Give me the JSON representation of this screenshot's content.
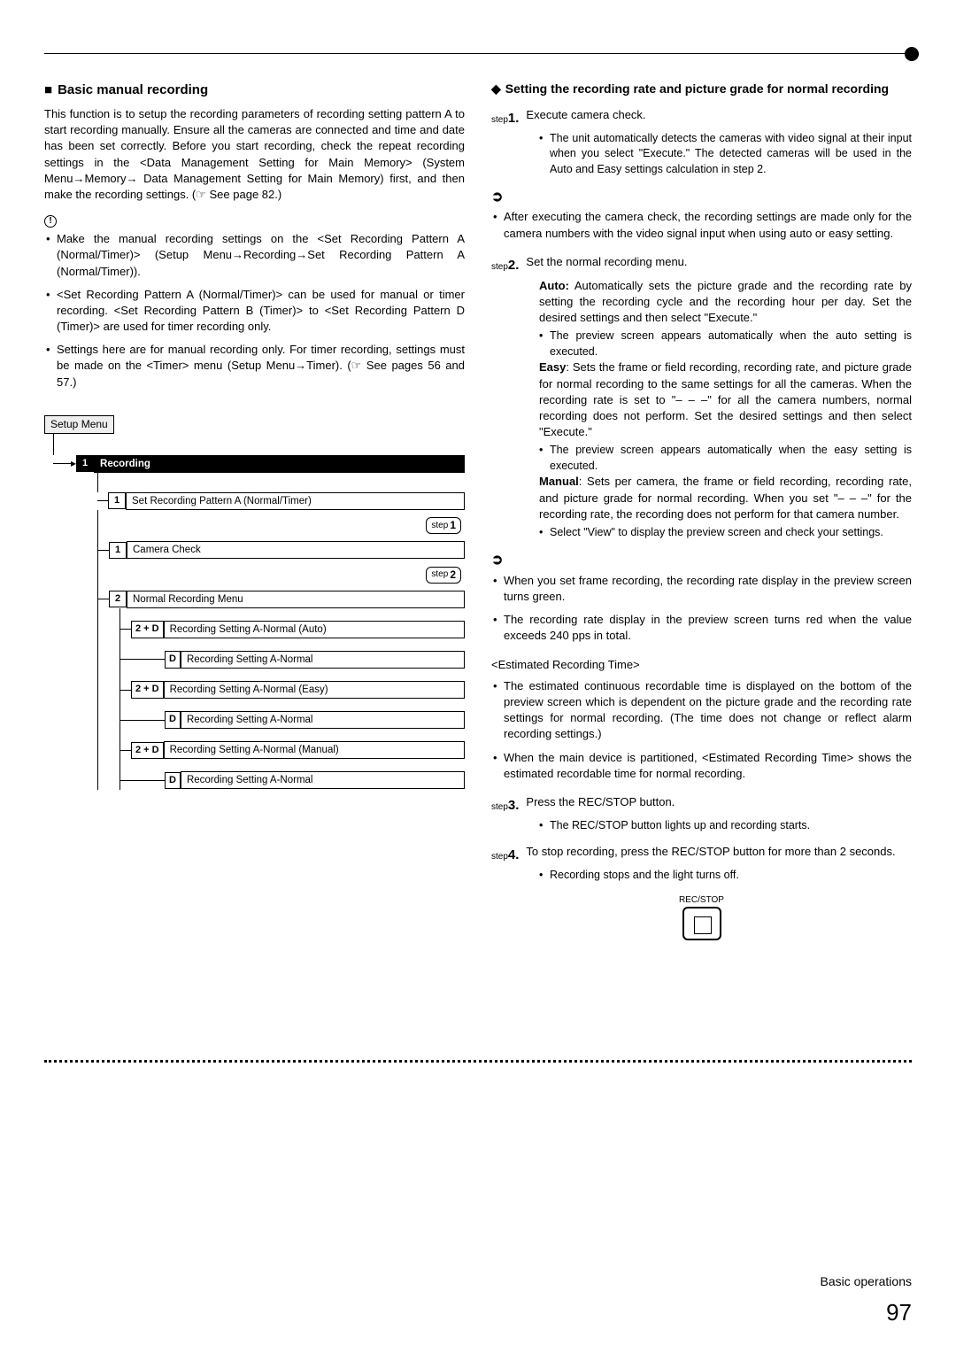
{
  "page": {
    "footer": "Basic operations",
    "number": "97"
  },
  "left": {
    "heading": "Basic manual recording",
    "intro": "This function is to setup the recording parameters of recording setting pattern A to start recording manually. Ensure all the cameras are connected and time and date has been set correctly. Before you start recording, check the repeat recording settings in the <Data Management Setting for Main Memory> (System Menu→Memory→ Data Management Setting for Main Memory) first, and then make the recording settings. (☞ See page 82.)",
    "notes": [
      "Make the manual recording settings on the <Set Recording Pattern A (Normal/Timer)> (Setup Menu→Recording→Set Recording Pattern A (Normal/Timer)).",
      "<Set Recording Pattern A (Normal/Timer)> can be used for manual or timer recording. <Set Recording Pattern B (Timer)> to <Set Recording Pattern D (Timer)> are used for timer recording only.",
      "Settings here are for manual recording only. For timer recording, settings must be made on the <Timer> menu (Setup Menu→Timer). (☞ See pages 56 and 57.)"
    ],
    "diagram": {
      "root": "Setup Menu",
      "section_num": "1",
      "section": "Recording",
      "item1_num": "1",
      "item1": "Set Recording Pattern A (Normal/Timer)",
      "camera_num": "1",
      "camera": "Camera Check",
      "menu_num": "2",
      "menu": "Normal Recording Menu",
      "rows": [
        {
          "tag": "2 + D",
          "label": "Recording Setting A-Normal (Auto)"
        },
        {
          "tag": "D",
          "label": "Recording Setting A-Normal"
        },
        {
          "tag": "2 + D",
          "label": "Recording Setting A-Normal (Easy)"
        },
        {
          "tag": "D",
          "label": "Recording Setting A-Normal"
        },
        {
          "tag": "2 + D",
          "label": "Recording Setting A-Normal (Manual)"
        },
        {
          "tag": "D",
          "label": "Recording Setting A-Normal"
        }
      ],
      "step1": "step",
      "step1n": "1",
      "step2": "step",
      "step2n": "2"
    }
  },
  "right": {
    "heading": "Setting the recording rate and picture grade for normal recording",
    "s1": {
      "label": "step",
      "num": "1.",
      "title": "Execute camera check.",
      "sub": "The unit automatically detects the cameras with video signal at their input when you select \"Execute.\" The detected cameras will be used in the Auto and Easy settings calculation in step 2."
    },
    "note1": "After executing the camera check, the recording settings are made only for the camera numbers with the video signal input when using auto or easy setting.",
    "s2": {
      "label": "step",
      "num": "2.",
      "title": "Set the normal recording menu.",
      "auto_lbl": "Auto:",
      "auto": "Automatically sets the picture grade and the recording rate by setting the recording cycle and the recording hour per day. Set the desired settings and then select \"Execute.\"",
      "auto_sub": "The preview screen appears automatically when the auto setting is executed.",
      "easy_lbl": "Easy",
      "easy": ": Sets the frame or field recording, recording rate, and picture grade for normal recording to the same settings for all the cameras. When the recording rate is set to \"– – –\" for all the camera numbers, normal recording does not perform. Set the desired settings and then select \"Execute.\"",
      "easy_sub": "The preview screen appears automatically when the easy setting is executed.",
      "manual_lbl": "Manual",
      "manual": ": Sets per camera, the frame or field recording, recording rate, and picture grade for normal recording. When you set \"– – –\" for the recording rate, the recording does not perform for that camera number.",
      "manual_sub": "Select \"View\" to display the preview screen and check your settings."
    },
    "note2a": "When you set frame recording, the recording rate display in the preview screen turns green.",
    "note2b": "The recording rate display in the preview screen turns red when the value exceeds 240 pps in total.",
    "ert_title": "<Estimated Recording Time>",
    "ert1": "The estimated continuous recordable time is displayed on the bottom of the preview screen which is dependent on the picture grade and the recording rate settings for normal recording. (The time does not change or reflect alarm recording settings.)",
    "ert2": "When the main device is partitioned, <Estimated Recording Time> shows the estimated recordable time for normal recording.",
    "s3": {
      "label": "step",
      "num": "3.",
      "title": "Press the REC/STOP button.",
      "sub": "The REC/STOP button lights up and recording starts."
    },
    "s4": {
      "label": "step",
      "num": "4.",
      "title": "To stop recording, press the REC/STOP button for more than 2 seconds.",
      "sub": "Recording stops and the light turns off."
    },
    "rec_label": "REC/STOP"
  }
}
